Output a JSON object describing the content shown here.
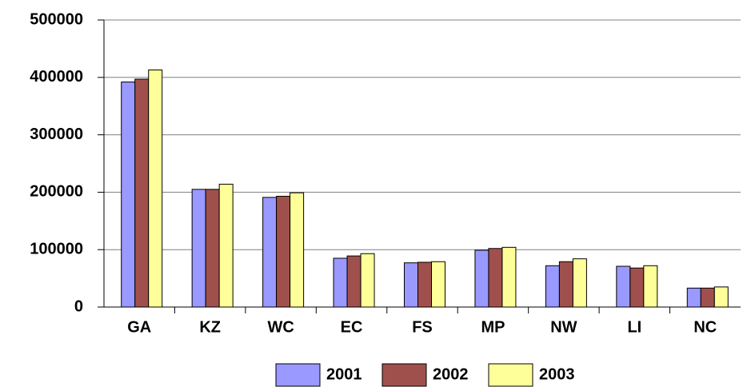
{
  "chart_data": {
    "type": "bar",
    "categories": [
      "GA",
      "KZ",
      "WC",
      "EC",
      "FS",
      "MP",
      "NW",
      "LI",
      "NC"
    ],
    "series": [
      {
        "name": "2001",
        "color": "#9999ff",
        "values": [
          392000,
          205000,
          191000,
          85000,
          77000,
          99000,
          72000,
          71000,
          33000
        ]
      },
      {
        "name": "2002",
        "color": "#a0504c",
        "values": [
          397000,
          205000,
          193000,
          89000,
          78000,
          102000,
          79000,
          68000,
          33000
        ]
      },
      {
        "name": "2003",
        "color": "#ffff99",
        "values": [
          413000,
          214000,
          199000,
          93000,
          79000,
          104000,
          84000,
          72000,
          35000
        ]
      }
    ],
    "ylim": [
      0,
      500000
    ],
    "yticks": [
      0,
      100000,
      200000,
      300000,
      400000,
      500000
    ],
    "grid": true,
    "legend": "bottom"
  }
}
